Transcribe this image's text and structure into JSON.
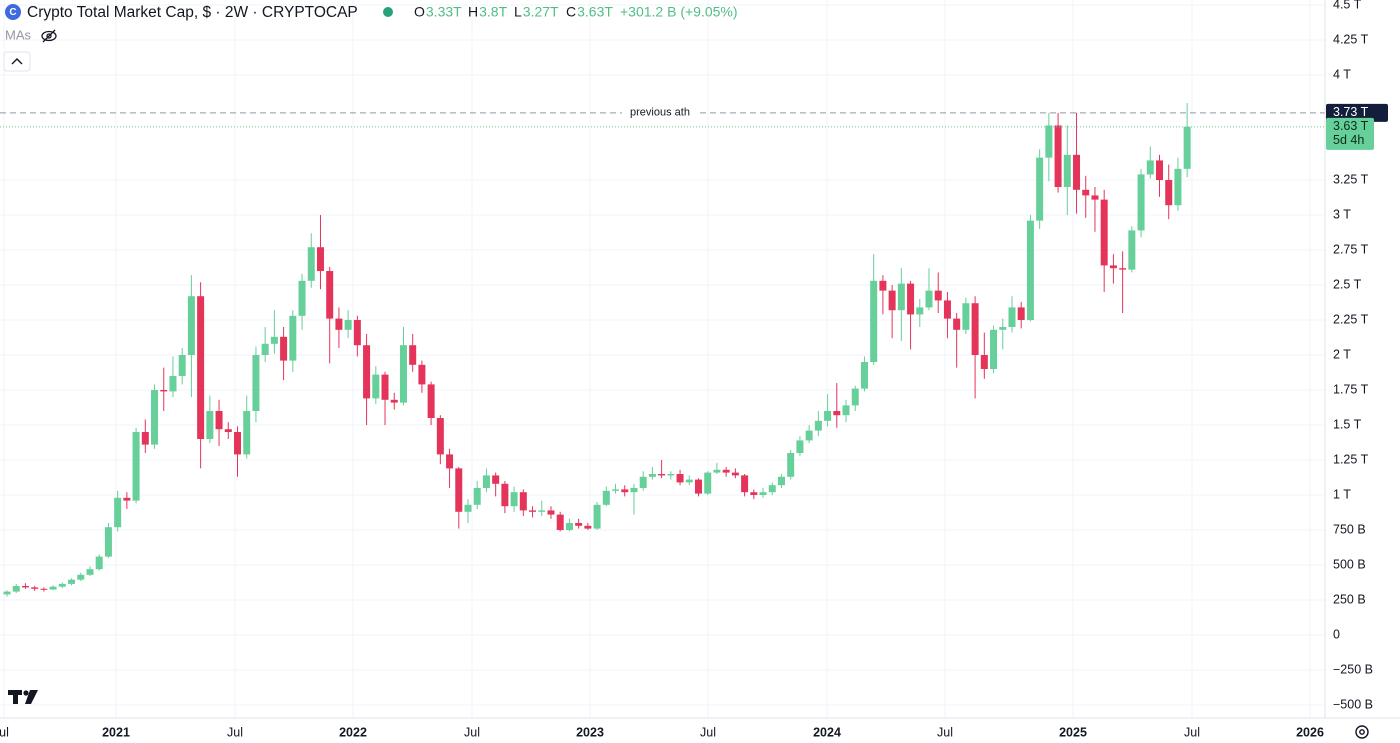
{
  "chart_data": {
    "type": "candlestick",
    "title": "Crypto Total Market Cap, $ · 2W · CRYPTOCAP",
    "ohlc": [
      {
        "label": "O",
        "value": "3.33T"
      },
      {
        "label": "H",
        "value": "3.8T"
      },
      {
        "label": "L",
        "value": "3.27T"
      },
      {
        "label": "C",
        "value": "3.63T"
      }
    ],
    "change": "+301.2 B (+9.05%)",
    "indicator": "MAs",
    "up_color": "#66cf9a",
    "down_color": "#e4345a",
    "open": [
      290,
      310,
      350,
      340,
      330,
      325,
      345,
      365,
      395,
      430,
      470,
      560,
      770,
      980,
      960,
      1450,
      1360,
      1750,
      1740,
      1850,
      2000,
      2420,
      1400,
      1600,
      1470,
      1450,
      1290,
      1600,
      2000,
      2080,
      2130,
      1960,
      2280,
      2530,
      2770,
      2600,
      2260,
      2180,
      2250,
      2070,
      1690,
      1860,
      1680,
      1660,
      2070,
      1930,
      1790,
      1550,
      1290,
      1190,
      880,
      930,
      1050,
      1140,
      1080,
      920,
      1020,
      890,
      880,
      890,
      860,
      750,
      800,
      780,
      760,
      930,
      1030,
      1040,
      1020,
      1050,
      1130,
      1150,
      1140,
      1150,
      1090,
      1110,
      1010,
      1160,
      1180,
      1160,
      1140,
      1020,
      1000,
      1020,
      1070,
      1130,
      1300,
      1390,
      1460,
      1530,
      1600,
      1570,
      1640,
      1760,
      1950,
      2530,
      2460,
      2320,
      2510,
      2290,
      2340,
      2460,
      2390,
      2260,
      2180,
      2370,
      2000,
      1900,
      2180,
      2200,
      2340,
      2250,
      2960,
      3410,
      3640,
      3200,
      3430,
      3180,
      3140,
      3110,
      2640,
      2620,
      2610,
      2890,
      3290,
      3390,
      3250,
      3070,
      3330
    ],
    "high": [
      320,
      365,
      370,
      350,
      340,
      355,
      375,
      405,
      445,
      490,
      575,
      800,
      1030,
      1020,
      1480,
      1540,
      1790,
      1910,
      1990,
      2050,
      2570,
      2520,
      1710,
      1680,
      1520,
      1490,
      1710,
      2060,
      2200,
      2320,
      2200,
      2320,
      2580,
      2870,
      3000,
      2630,
      2340,
      2320,
      2280,
      2150,
      1920,
      1880,
      1730,
      2200,
      2150,
      1960,
      1810,
      1570,
      1330,
      1200,
      970,
      1100,
      1190,
      1160,
      1100,
      1060,
      1040,
      920,
      960,
      920,
      880,
      830,
      830,
      800,
      950,
      1060,
      1080,
      1070,
      1080,
      1170,
      1200,
      1250,
      1170,
      1180,
      1140,
      1120,
      1170,
      1230,
      1200,
      1190,
      1150,
      1040,
      1050,
      1090,
      1150,
      1320,
      1420,
      1500,
      1600,
      1720,
      1800,
      1680,
      1780,
      1990,
      2720,
      2570,
      2500,
      2620,
      2530,
      2400,
      2620,
      2590,
      2450,
      2300,
      2410,
      2420,
      2160,
      2210,
      2260,
      2420,
      2380,
      3000,
      3470,
      3730,
      3730,
      3640,
      3730,
      3280,
      3200,
      3180,
      2720,
      2740,
      2920,
      3330,
      3490,
      3430,
      3360,
      3410,
      3800
    ],
    "low": [
      275,
      300,
      330,
      315,
      310,
      320,
      335,
      355,
      385,
      420,
      460,
      550,
      740,
      900,
      940,
      1300,
      1330,
      1600,
      1700,
      1790,
      1700,
      1190,
      1370,
      1350,
      1400,
      1130,
      1260,
      1520,
      1950,
      2010,
      1820,
      1880,
      2180,
      2480,
      2470,
      1940,
      2050,
      2120,
      1990,
      1500,
      1650,
      1500,
      1610,
      1640,
      1880,
      1730,
      1500,
      1220,
      1050,
      760,
      800,
      900,
      1020,
      990,
      870,
      880,
      850,
      840,
      850,
      830,
      740,
      740,
      760,
      750,
      750,
      920,
      1010,
      990,
      860,
      1030,
      1110,
      1120,
      1110,
      1070,
      1070,
      990,
      1000,
      1150,
      1130,
      1120,
      990,
      970,
      980,
      1000,
      1050,
      1110,
      1280,
      1370,
      1420,
      1490,
      1480,
      1520,
      1600,
      1740,
      1930,
      2290,
      2120,
      2100,
      2040,
      2200,
      2320,
      2300,
      2120,
      1910,
      2150,
      1690,
      1830,
      1870,
      2040,
      2160,
      2190,
      2240,
      2900,
      3240,
      3160,
      3000,
      3010,
      2980,
      2880,
      2450,
      2510,
      2300,
      2590,
      2840,
      3260,
      3130,
      2970,
      3030,
      3270
    ],
    "close": [
      310,
      350,
      340,
      330,
      325,
      345,
      365,
      395,
      430,
      470,
      560,
      770,
      980,
      960,
      1450,
      1360,
      1750,
      1740,
      1850,
      2000,
      2420,
      1400,
      1600,
      1470,
      1450,
      1290,
      1600,
      2000,
      2080,
      2130,
      1960,
      2280,
      2530,
      2770,
      2600,
      2260,
      2180,
      2250,
      2070,
      1690,
      1860,
      1680,
      1660,
      2070,
      1930,
      1790,
      1550,
      1290,
      1190,
      880,
      930,
      1050,
      1140,
      1080,
      920,
      1020,
      890,
      880,
      890,
      860,
      750,
      800,
      780,
      760,
      930,
      1030,
      1040,
      1020,
      1050,
      1130,
      1150,
      1140,
      1150,
      1090,
      1110,
      1010,
      1160,
      1180,
      1160,
      1140,
      1020,
      1000,
      1020,
      1070,
      1130,
      1300,
      1390,
      1460,
      1530,
      1600,
      1570,
      1640,
      1760,
      1950,
      2530,
      2460,
      2320,
      2510,
      2290,
      2340,
      2460,
      2390,
      2260,
      2180,
      2370,
      2000,
      1900,
      2180,
      2200,
      2340,
      2250,
      2960,
      3410,
      3640,
      3200,
      3430,
      3180,
      3140,
      3110,
      2640,
      2620,
      2610,
      2890,
      3290,
      3390,
      3250,
      3070,
      3330,
      3630
    ],
    "x_labels": [
      "ul",
      "2021",
      "Jul",
      "2022",
      "Jul",
      "2023",
      "Jul",
      "2024",
      "Jul",
      "2025",
      "Jul",
      "2026"
    ],
    "ylim": [
      -593,
      4536
    ],
    "yticks": [
      {
        "value": 4500,
        "label": "4.5 T"
      },
      {
        "value": 4250,
        "label": "4.25 T"
      },
      {
        "value": 4000,
        "label": "4 T"
      },
      {
        "value": 3250,
        "label": "3.25 T"
      },
      {
        "value": 3000,
        "label": "3 T"
      },
      {
        "value": 2750,
        "label": "2.75 T"
      },
      {
        "value": 2500,
        "label": "2.5 T"
      },
      {
        "value": 2250,
        "label": "2.25 T"
      },
      {
        "value": 2000,
        "label": "2 T"
      },
      {
        "value": 1750,
        "label": "1.75 T"
      },
      {
        "value": 1500,
        "label": "1.5 T"
      },
      {
        "value": 1250,
        "label": "1.25 T"
      },
      {
        "value": 1000,
        "label": "1 T"
      },
      {
        "value": 750,
        "label": "750 B"
      },
      {
        "value": 500,
        "label": "500 B"
      },
      {
        "value": 250,
        "label": "250 B"
      },
      0,
      {
        "value": -250,
        "label": "−250 B"
      },
      {
        "value": -500,
        "label": "−500 B"
      }
    ],
    "grid": true,
    "reference_line": {
      "text": "previous ath",
      "value": 3730,
      "label": "3.73 T"
    },
    "last_price": {
      "value": 3630,
      "label": "3.63 T",
      "countdown": "5d 4h"
    }
  }
}
